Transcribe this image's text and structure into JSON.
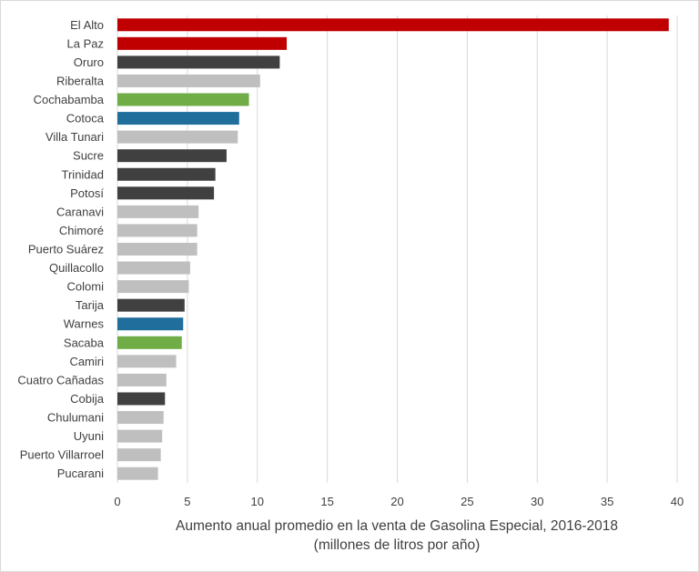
{
  "chart_data": {
    "type": "bar",
    "orientation": "horizontal",
    "categories": [
      "El Alto",
      "La Paz",
      "Oruro",
      "Riberalta",
      "Cochabamba",
      "Cotoca",
      "Villa Tunari",
      "Sucre",
      "Trinidad",
      "Potosí",
      "Caranavi",
      "Chimoré",
      "Puerto Suárez",
      "Quillacollo",
      "Colomi",
      "Tarija",
      "Warnes",
      "Sacaba",
      "Camiri",
      "Cuatro Cañadas",
      "Cobija",
      "Chulumani",
      "Uyuni",
      "Puerto Villarroel",
      "Pucarani"
    ],
    "values": [
      39.4,
      12.1,
      11.6,
      10.2,
      9.4,
      8.7,
      8.6,
      7.8,
      7.0,
      6.9,
      5.8,
      5.7,
      5.7,
      5.2,
      5.1,
      4.8,
      4.7,
      4.6,
      4.2,
      3.5,
      3.4,
      3.3,
      3.2,
      3.1,
      2.9
    ],
    "colors": [
      "#c00000",
      "#c00000",
      "#404040",
      "#bfbfbf",
      "#70ad47",
      "#1f6e9c",
      "#bfbfbf",
      "#404040",
      "#404040",
      "#404040",
      "#bfbfbf",
      "#bfbfbf",
      "#bfbfbf",
      "#bfbfbf",
      "#bfbfbf",
      "#404040",
      "#1f6e9c",
      "#70ad47",
      "#bfbfbf",
      "#bfbfbf",
      "#404040",
      "#bfbfbf",
      "#bfbfbf",
      "#bfbfbf",
      "#bfbfbf"
    ],
    "xlim": [
      0,
      40
    ],
    "xticks": [
      0,
      5,
      10,
      15,
      20,
      25,
      30,
      35,
      40
    ],
    "grid": true,
    "xlabel": "Aumento anual promedio en la venta de Gasolina Especial, 2016-2018",
    "xlabel_line2": "(millones de litros por año)",
    "title": "",
    "legend": "none"
  },
  "style": {
    "gridline_color": "#d9d9d9",
    "text_color": "#404040",
    "background": "#ffffff"
  }
}
